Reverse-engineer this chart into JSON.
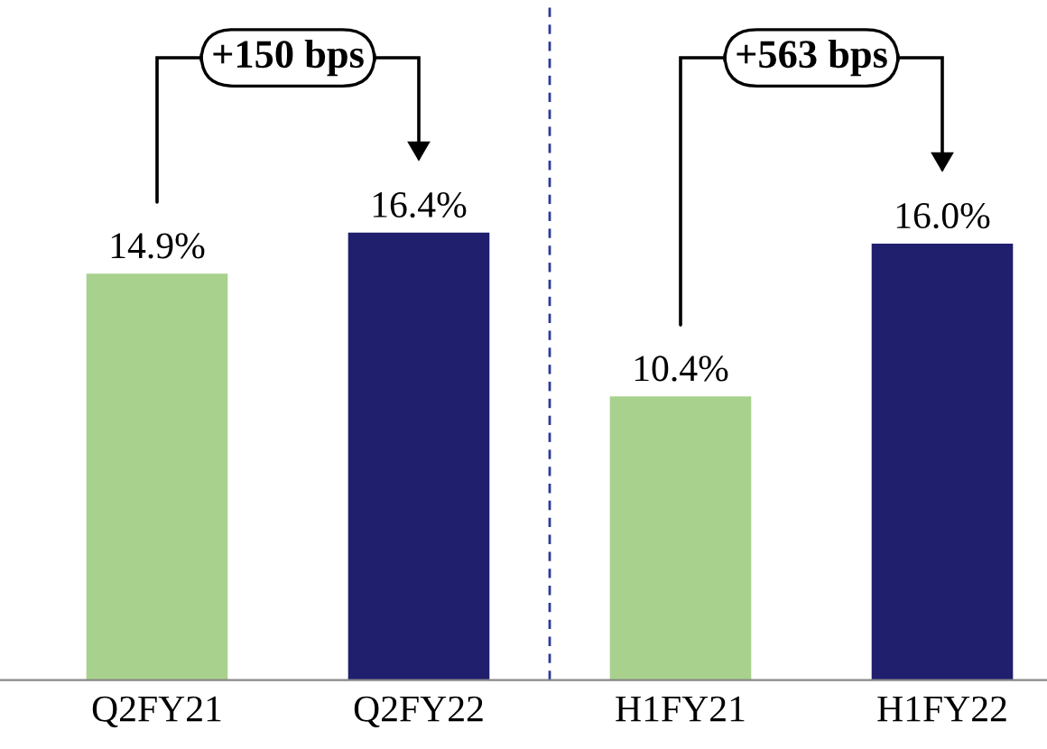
{
  "chart_data": {
    "type": "bar",
    "categories": [
      "Q2FY21",
      "Q2FY22",
      "H1FY21",
      "H1FY22"
    ],
    "values": [
      14.9,
      16.4,
      10.4,
      16.0
    ],
    "colors": [
      "#a9d18e",
      "#1f1f6e",
      "#a9d18e",
      "#1f1f6e"
    ],
    "value_labels": [
      "14.9%",
      "16.4%",
      "10.4%",
      "16.0%"
    ],
    "annotations": [
      "+150 bps",
      "+563 bps"
    ]
  }
}
